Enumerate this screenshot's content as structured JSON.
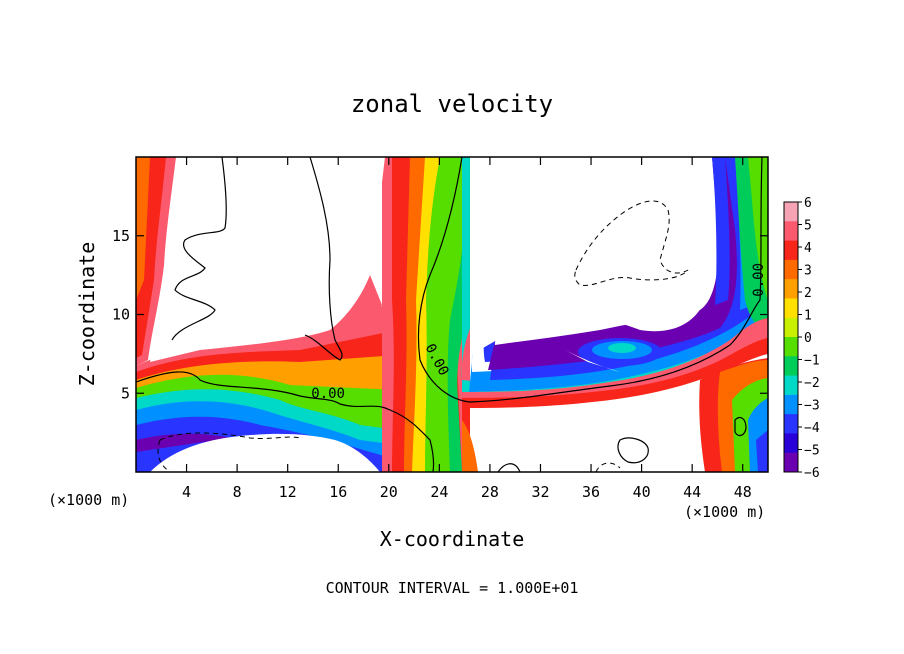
{
  "chart_data": {
    "type": "heatmap",
    "title": "zonal velocity",
    "xlabel": "X-coordinate",
    "ylabel": "Z-coordinate",
    "x_unit_label": "(×1000 m)",
    "x_unit_label_right": "(×1000 m)",
    "footer": "CONTOUR INTERVAL = 1.000E+01",
    "xlim": [
      0,
      50
    ],
    "ylim": [
      0,
      20
    ],
    "x_ticks": [
      4,
      8,
      12,
      16,
      20,
      24,
      28,
      32,
      36,
      40,
      44,
      48
    ],
    "y_ticks": [
      5,
      10,
      15
    ],
    "colorbar": {
      "min": -6,
      "max": 6,
      "ticks": [
        "6",
        "5",
        "4",
        "3",
        "2",
        "1",
        "0",
        "−1",
        "−2",
        "−3",
        "−4",
        "−5",
        "−6"
      ],
      "colors": [
        "#f5a3b5",
        "#fb5a6e",
        "#f8251a",
        "#ff6a00",
        "#ffa000",
        "#ffe000",
        "#c9f000",
        "#55de00",
        "#00cc5a",
        "#00d8c8",
        "#0090ff",
        "#2a34ff",
        "#2a00d8",
        "#6a00b0"
      ]
    },
    "contour_labels": [
      {
        "text": "0.00",
        "x": 15.2,
        "z": 4.7,
        "rotate": 0
      },
      {
        "text": "0.00",
        "x": 23.5,
        "z": 7.0,
        "rotate": 62
      },
      {
        "text": "0.00",
        "x": 49.6,
        "z": 12.2,
        "rotate": -90
      }
    ]
  }
}
